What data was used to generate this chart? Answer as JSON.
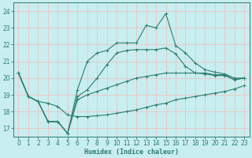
{
  "xlabel": "Humidex (Indice chaleur)",
  "bg_color": "#c8eef0",
  "grid_color": "#e8c8c8",
  "line_color": "#2e7d6e",
  "xlim": [
    -0.5,
    23.5
  ],
  "ylim": [
    16.5,
    24.5
  ],
  "xticks": [
    0,
    1,
    2,
    3,
    4,
    5,
    6,
    7,
    8,
    9,
    10,
    11,
    12,
    13,
    14,
    15,
    16,
    17,
    18,
    19,
    20,
    21,
    22,
    23
  ],
  "yticks": [
    17,
    18,
    19,
    20,
    21,
    22,
    23,
    24
  ],
  "lines": [
    {
      "x": [
        0,
        1,
        2,
        3,
        4,
        5,
        6,
        7,
        8,
        9,
        10,
        11,
        12,
        13,
        14,
        15,
        16,
        17,
        18,
        19,
        20,
        21,
        22,
        23
      ],
      "y": [
        20.3,
        18.9,
        18.6,
        17.4,
        17.4,
        16.7,
        18.7,
        19.0,
        19.2,
        19.4,
        19.6,
        19.8,
        20.0,
        20.1,
        20.2,
        20.3,
        20.3,
        20.3,
        20.3,
        20.3,
        20.2,
        20.2,
        19.9,
        20.0
      ]
    },
    {
      "x": [
        0,
        1,
        2,
        3,
        4,
        5,
        6,
        7,
        8,
        9,
        10,
        11,
        12,
        13,
        14,
        15,
        16,
        17,
        18,
        19,
        20,
        21,
        22,
        23
      ],
      "y": [
        20.3,
        18.9,
        18.6,
        17.4,
        17.4,
        16.7,
        19.3,
        21.0,
        21.5,
        21.65,
        22.1,
        22.1,
        22.1,
        23.15,
        23.0,
        23.85,
        21.95,
        21.5,
        20.9,
        20.5,
        20.35,
        20.25,
        20.0,
        20.0
      ]
    },
    {
      "x": [
        0,
        1,
        2,
        3,
        4,
        5,
        6,
        7,
        8,
        9,
        10,
        11,
        12,
        13,
        14,
        15,
        16,
        17,
        18,
        19,
        20,
        21,
        22,
        23
      ],
      "y": [
        20.3,
        18.9,
        18.6,
        17.4,
        17.4,
        16.7,
        18.9,
        19.3,
        20.0,
        20.8,
        21.5,
        21.65,
        21.7,
        21.7,
        21.7,
        21.8,
        21.45,
        20.7,
        20.3,
        20.25,
        20.15,
        20.15,
        19.9,
        20.0
      ]
    },
    {
      "x": [
        0,
        1,
        2,
        3,
        4,
        5,
        6,
        7,
        8,
        9,
        10,
        11,
        12,
        13,
        14,
        15,
        16,
        17,
        18,
        19,
        20,
        21,
        22,
        23
      ],
      "y": [
        20.3,
        18.9,
        18.6,
        18.5,
        18.3,
        17.8,
        17.7,
        17.7,
        17.75,
        17.8,
        17.9,
        18.0,
        18.1,
        18.25,
        18.4,
        18.5,
        18.7,
        18.8,
        18.9,
        19.0,
        19.1,
        19.2,
        19.35,
        19.55
      ]
    }
  ]
}
